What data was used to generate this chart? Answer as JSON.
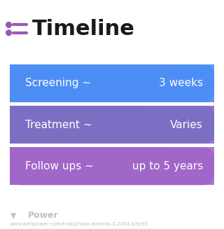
{
  "title": "Timeline",
  "title_fontsize": 22,
  "title_color": "#1a1a1a",
  "icon_color": "#9b59b6",
  "background_color": "#ffffff",
  "rows": [
    {
      "label": "Screening ~",
      "value": "3 weeks",
      "color_left": "#4d8ef5",
      "color_right": "#5b9bf8"
    },
    {
      "label": "Treatment ~",
      "value": "Varies",
      "color_left": "#7b6fc4",
      "color_right": "#9b72c8"
    },
    {
      "label": "Follow ups ~",
      "value": "up to 5 years",
      "color_left": "#a066c8",
      "color_right": "#b07ad4"
    }
  ],
  "watermark_text": "Power",
  "url_text": "www.withpower.com/trial/phase-anemia-3-2001-b5e95",
  "watermark_color": "#c0c0c0",
  "url_color": "#c0c0c0",
  "text_color": "#ffffff",
  "label_fontsize": 11,
  "value_fontsize": 11
}
